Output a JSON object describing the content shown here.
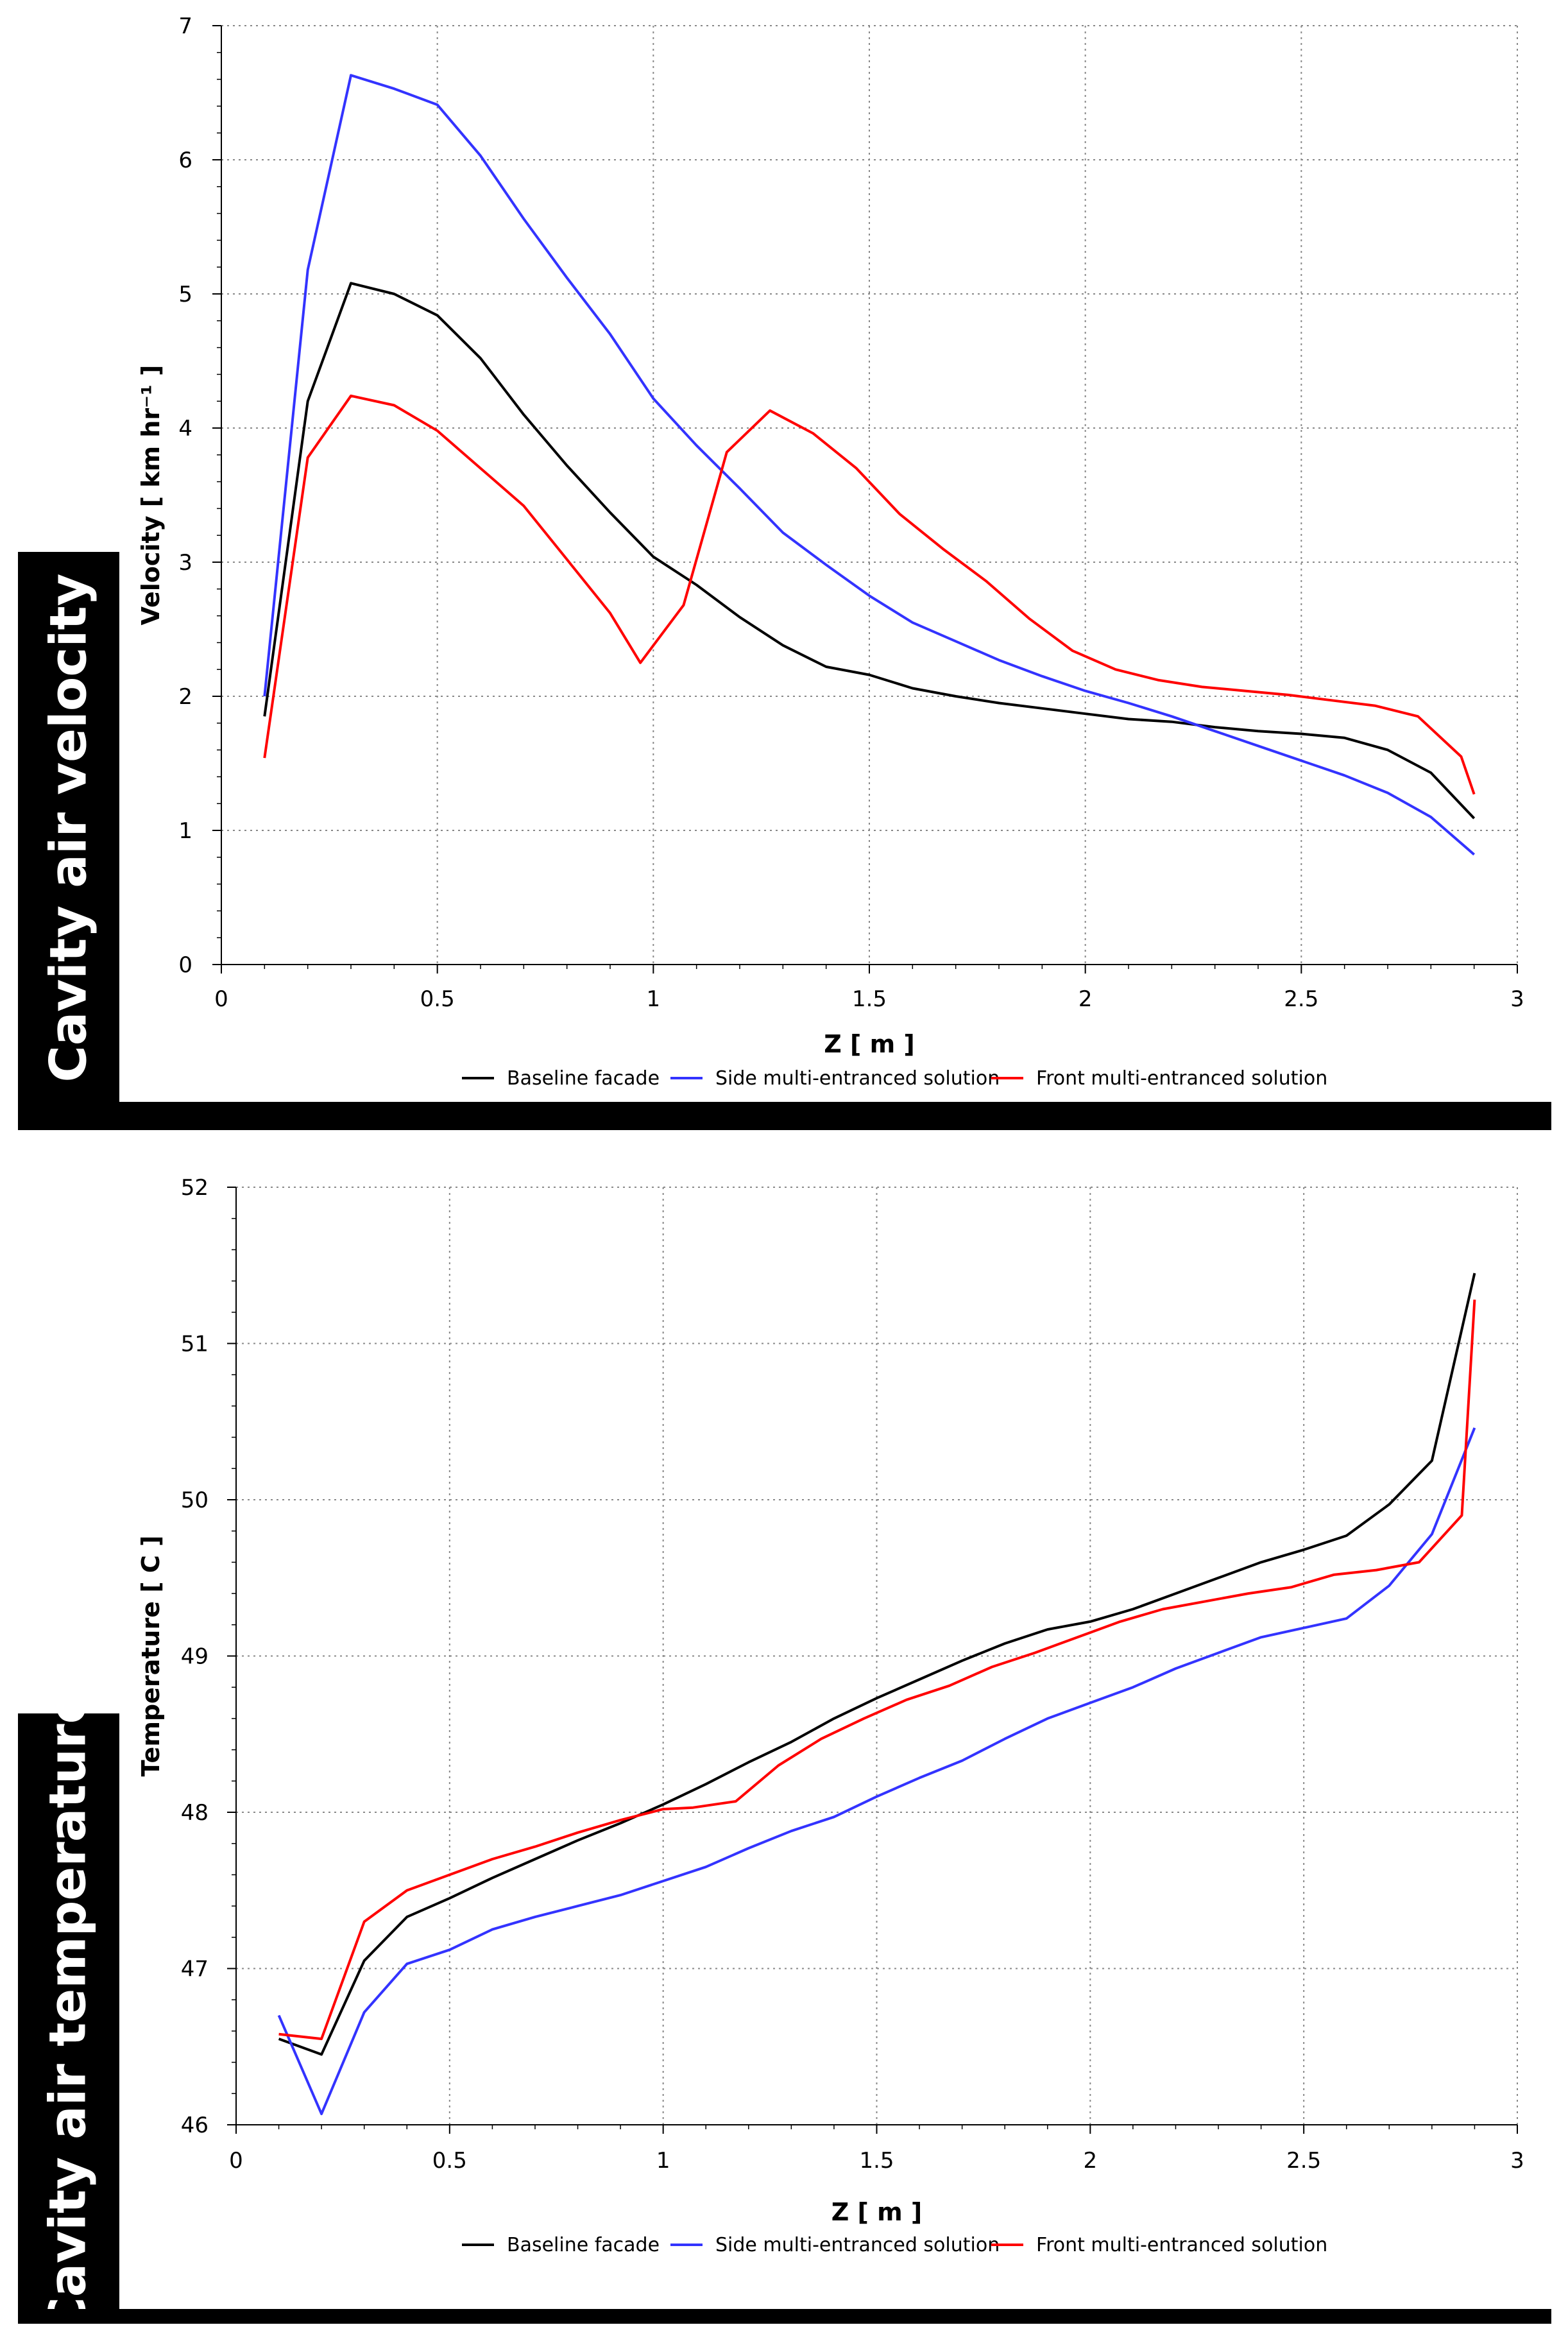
{
  "panels": {
    "velocity_label": "Cavity air velocity",
    "temperature_label": "Cavity air temperature"
  },
  "colors": {
    "baseline": "#000000",
    "side": "#3333ff",
    "front": "#ff0000",
    "grid": "#888888"
  },
  "chart_data": [
    {
      "type": "line",
      "title": "",
      "xlabel": "Z [ m ]",
      "ylabel": "Velocity [ km hr⁻¹ ]",
      "xlim": [
        0,
        3
      ],
      "ylim": [
        0,
        7
      ],
      "xticks": [
        0,
        0.5,
        1,
        1.5,
        2,
        2.5,
        3
      ],
      "xtick_labels": [
        "0",
        "0.5",
        "1",
        "1.5",
        "2",
        "2.5",
        "3"
      ],
      "yticks": [
        0,
        1,
        2,
        3,
        4,
        5,
        6,
        7
      ],
      "ytick_labels": [
        "0",
        "1",
        "2",
        "3",
        "4",
        "5",
        "6",
        "7"
      ],
      "grid": true,
      "legend_position": "bottom",
      "series": [
        {
          "name": "Baseline facade",
          "color_key": "baseline",
          "x": [
            0.1,
            0.2,
            0.3,
            0.4,
            0.5,
            0.6,
            0.7,
            0.8,
            0.9,
            1.0,
            1.1,
            1.2,
            1.3,
            1.4,
            1.5,
            1.6,
            1.7,
            1.8,
            1.9,
            2.0,
            2.1,
            2.2,
            2.3,
            2.4,
            2.5,
            2.6,
            2.7,
            2.8,
            2.9
          ],
          "y": [
            1.85,
            4.2,
            5.08,
            5.0,
            4.84,
            4.52,
            4.1,
            3.72,
            3.37,
            3.04,
            2.83,
            2.59,
            2.38,
            2.22,
            2.16,
            2.06,
            2.0,
            1.95,
            1.91,
            1.87,
            1.83,
            1.81,
            1.77,
            1.74,
            1.72,
            1.69,
            1.6,
            1.43,
            1.09
          ]
        },
        {
          "name": "Side multi-entranced solution",
          "color_key": "side",
          "x": [
            0.1,
            0.2,
            0.3,
            0.4,
            0.5,
            0.6,
            0.7,
            0.8,
            0.9,
            1.0,
            1.1,
            1.2,
            1.3,
            1.4,
            1.5,
            1.6,
            1.7,
            1.8,
            1.9,
            2.0,
            2.1,
            2.2,
            2.3,
            2.4,
            2.5,
            2.6,
            2.7,
            2.8,
            2.9
          ],
          "y": [
            2.0,
            5.18,
            6.63,
            6.53,
            6.41,
            6.03,
            5.56,
            5.12,
            4.7,
            4.22,
            3.87,
            3.55,
            3.22,
            2.98,
            2.75,
            2.55,
            2.41,
            2.27,
            2.15,
            2.04,
            1.95,
            1.85,
            1.74,
            1.63,
            1.52,
            1.41,
            1.28,
            1.1,
            0.82
          ]
        },
        {
          "name": "Front multi-entranced solution",
          "color_key": "front",
          "x": [
            0.1,
            0.2,
            0.3,
            0.4,
            0.5,
            0.6,
            0.7,
            0.8,
            0.9,
            0.97,
            1.07,
            1.17,
            1.27,
            1.37,
            1.47,
            1.57,
            1.67,
            1.77,
            1.87,
            1.97,
            2.07,
            2.17,
            2.27,
            2.37,
            2.47,
            2.57,
            2.67,
            2.77,
            2.87,
            2.9
          ],
          "y": [
            1.54,
            3.78,
            4.24,
            4.17,
            3.98,
            3.7,
            3.42,
            3.02,
            2.62,
            2.25,
            2.68,
            3.82,
            4.13,
            3.96,
            3.7,
            3.36,
            3.1,
            2.86,
            2.58,
            2.34,
            2.2,
            2.12,
            2.07,
            2.04,
            2.01,
            1.97,
            1.93,
            1.85,
            1.55,
            1.27
          ]
        }
      ]
    },
    {
      "type": "line",
      "title": "",
      "xlabel": "Z [ m ]",
      "ylabel": "Temperature [ C ]",
      "xlim": [
        0,
        3
      ],
      "ylim": [
        46,
        52
      ],
      "xticks": [
        0,
        0.5,
        1,
        1.5,
        2,
        2.5,
        3
      ],
      "xtick_labels": [
        "0",
        "0.5",
        "1",
        "1.5",
        "2",
        "2.5",
        "3"
      ],
      "yticks": [
        46,
        47,
        48,
        49,
        50,
        51,
        52
      ],
      "ytick_labels": [
        "46",
        "47",
        "48",
        "49",
        "50",
        "51",
        "52"
      ],
      "grid": true,
      "legend_position": "bottom",
      "series": [
        {
          "name": "Baseline facade",
          "color_key": "baseline",
          "x": [
            0.1,
            0.2,
            0.3,
            0.4,
            0.5,
            0.6,
            0.7,
            0.8,
            0.9,
            1.0,
            1.1,
            1.2,
            1.3,
            1.4,
            1.5,
            1.6,
            1.7,
            1.8,
            1.9,
            2.0,
            2.1,
            2.2,
            2.3,
            2.4,
            2.5,
            2.6,
            2.7,
            2.8,
            2.9
          ],
          "y": [
            46.55,
            46.45,
            47.05,
            47.33,
            47.45,
            47.58,
            47.7,
            47.82,
            47.93,
            48.05,
            48.18,
            48.32,
            48.45,
            48.6,
            48.73,
            48.85,
            48.97,
            49.08,
            49.17,
            49.22,
            49.3,
            49.4,
            49.5,
            49.6,
            49.68,
            49.77,
            49.97,
            50.25,
            51.45
          ]
        },
        {
          "name": "Side multi-entranced solution",
          "color_key": "side",
          "x": [
            0.1,
            0.2,
            0.3,
            0.4,
            0.5,
            0.6,
            0.7,
            0.8,
            0.9,
            1.0,
            1.1,
            1.2,
            1.3,
            1.4,
            1.5,
            1.6,
            1.7,
            1.8,
            1.9,
            2.0,
            2.1,
            2.2,
            2.3,
            2.4,
            2.5,
            2.6,
            2.7,
            2.8,
            2.9
          ],
          "y": [
            46.7,
            46.07,
            46.72,
            47.03,
            47.12,
            47.25,
            47.33,
            47.4,
            47.47,
            47.56,
            47.65,
            47.77,
            47.88,
            47.97,
            48.1,
            48.22,
            48.33,
            48.47,
            48.6,
            48.7,
            48.8,
            48.92,
            49.02,
            49.12,
            49.18,
            49.24,
            49.45,
            49.78,
            50.46
          ]
        },
        {
          "name": "Front multi-entranced solution",
          "color_key": "front",
          "x": [
            0.1,
            0.2,
            0.3,
            0.4,
            0.5,
            0.6,
            0.7,
            0.8,
            0.9,
            1.0,
            1.07,
            1.17,
            1.27,
            1.37,
            1.47,
            1.57,
            1.67,
            1.77,
            1.87,
            1.97,
            2.07,
            2.17,
            2.27,
            2.37,
            2.47,
            2.57,
            2.67,
            2.77,
            2.87,
            2.9
          ],
          "y": [
            46.58,
            46.55,
            47.3,
            47.5,
            47.6,
            47.7,
            47.78,
            47.87,
            47.95,
            48.02,
            48.03,
            48.07,
            48.3,
            48.47,
            48.6,
            48.72,
            48.81,
            48.93,
            49.02,
            49.12,
            49.22,
            49.3,
            49.35,
            49.4,
            49.44,
            49.52,
            49.55,
            49.6,
            49.9,
            51.28
          ]
        }
      ]
    }
  ]
}
